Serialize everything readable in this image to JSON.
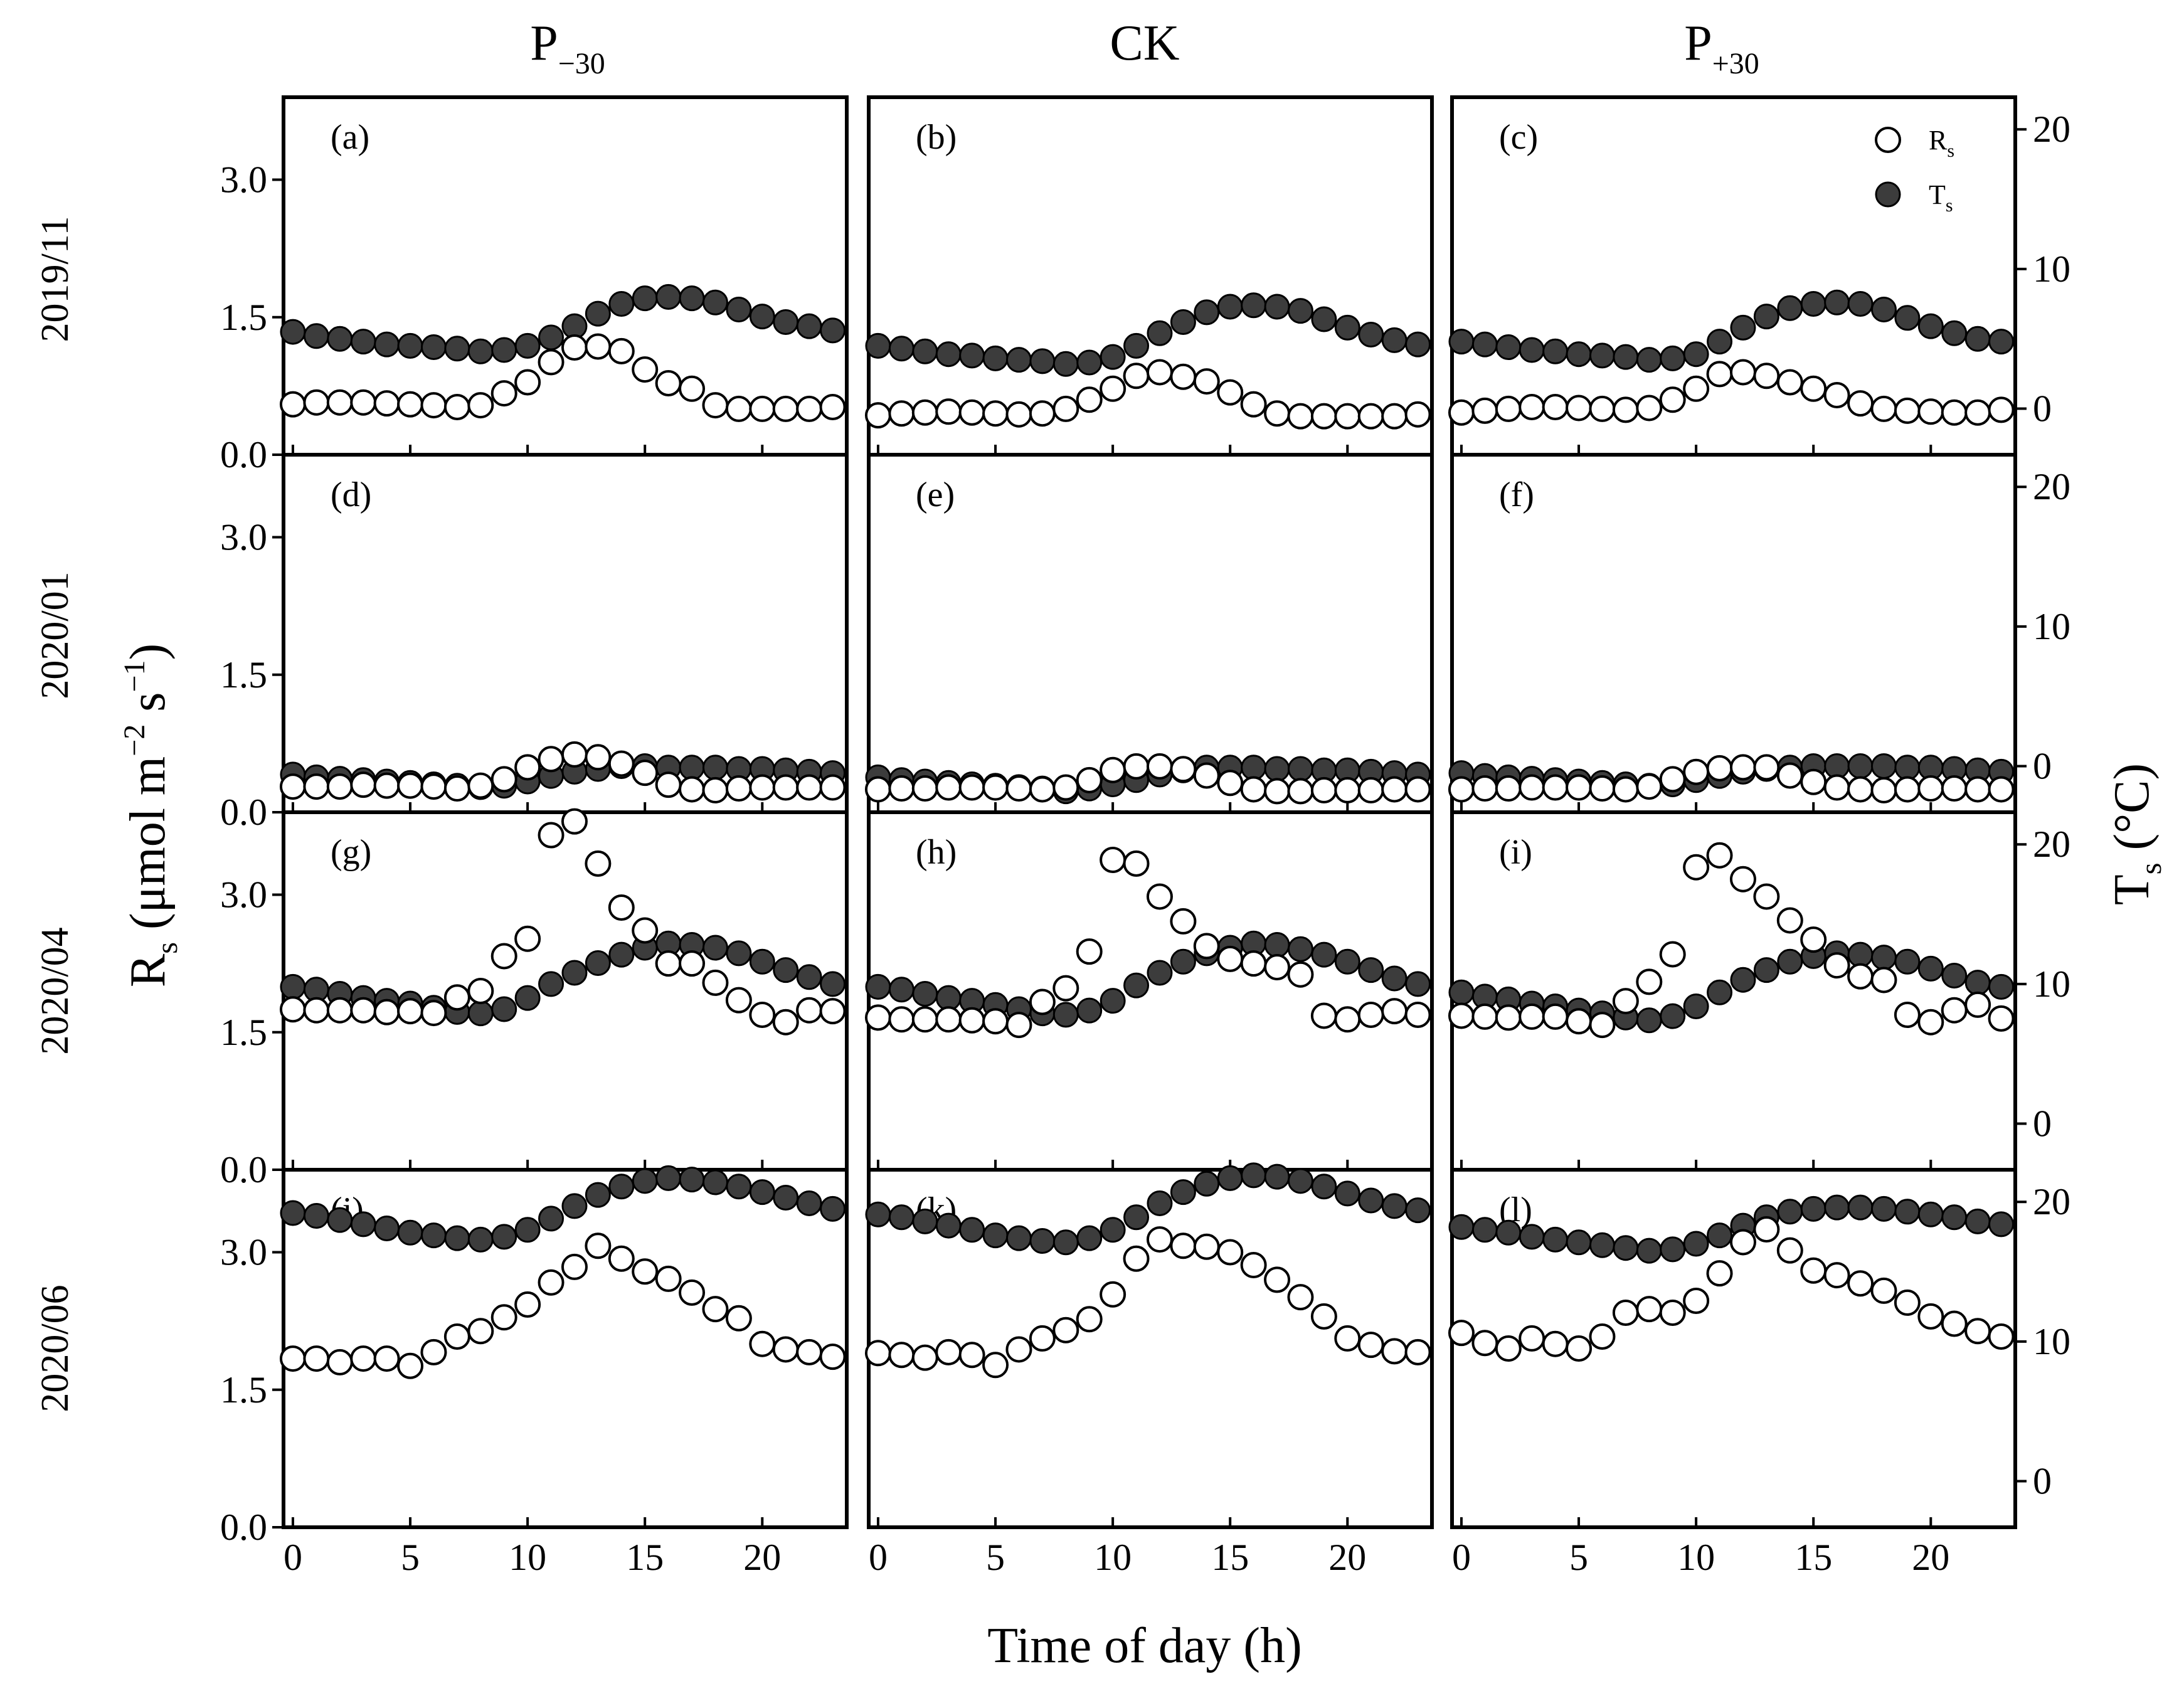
{
  "figure": {
    "columns": [
      {
        "base": "P",
        "sub": "−30"
      },
      {
        "base": "CK",
        "sub": ""
      },
      {
        "base": "P",
        "sub": "+30"
      }
    ],
    "rows": [
      "2019/11",
      "2020/01",
      "2020/04",
      "2020/06"
    ],
    "y_left_title": {
      "base": "R",
      "sub": "s",
      "rest": " (μmol m",
      "sup1": "−2",
      "mid": " s",
      "sup2": "−1",
      "end": ")"
    },
    "y_right_title": {
      "base": "T",
      "sub": "s",
      "rest": " (°C)"
    },
    "x_title": "Time of day (h)",
    "legend": [
      {
        "base": "R",
        "sub": "s",
        "marker": "open-circle"
      },
      {
        "base": "T",
        "sub": "s",
        "marker": "filled-circle"
      }
    ],
    "colors": {
      "rs_fill": "#ffffff",
      "ts_fill": "#3c3c3c",
      "marker_stroke": "#000000"
    }
  },
  "chart_data": {
    "type": "scatter",
    "x_label": "Time of day (h)",
    "x_ticks": [
      "0",
      "5",
      "10",
      "15",
      "20"
    ],
    "xlim": [
      -0.4,
      23.6
    ],
    "y_left": {
      "label": "Rs (μmol m−2 s−1)",
      "lim": [
        0,
        3.9
      ],
      "ticks": [
        "0.0",
        "1.5",
        "3.0"
      ]
    },
    "y_right": {
      "label": "Ts (°C)",
      "lim": [
        -3.3,
        22.3
      ],
      "ticks": [
        "0",
        "10",
        "20"
      ]
    },
    "hours": [
      0,
      1,
      2,
      3,
      4,
      5,
      6,
      7,
      8,
      9,
      10,
      11,
      12,
      13,
      14,
      15,
      16,
      17,
      18,
      19,
      20,
      21,
      22,
      23
    ],
    "panels": [
      {
        "letter": "(a)",
        "row": "2019/11",
        "col": "P−30",
        "rs": [
          0.55,
          0.57,
          0.57,
          0.57,
          0.56,
          0.55,
          0.54,
          0.52,
          0.54,
          0.67,
          0.79,
          1.01,
          1.17,
          1.18,
          1.13,
          0.93,
          0.78,
          0.72,
          0.54,
          0.5,
          0.5,
          0.5,
          0.5,
          0.52
        ],
        "ts": [
          5.5,
          5.2,
          5.0,
          4.8,
          4.6,
          4.5,
          4.4,
          4.3,
          4.1,
          4.2,
          4.5,
          5.1,
          5.9,
          6.8,
          7.5,
          7.9,
          8.0,
          7.9,
          7.6,
          7.1,
          6.6,
          6.2,
          5.9,
          5.6
        ]
      },
      {
        "letter": "(b)",
        "row": "2019/11",
        "col": "CK",
        "rs": [
          0.43,
          0.45,
          0.46,
          0.47,
          0.46,
          0.45,
          0.44,
          0.45,
          0.5,
          0.6,
          0.72,
          0.86,
          0.9,
          0.85,
          0.8,
          0.68,
          0.55,
          0.45,
          0.42,
          0.42,
          0.42,
          0.42,
          0.42,
          0.44
        ],
        "ts": [
          4.5,
          4.3,
          4.1,
          3.9,
          3.8,
          3.6,
          3.5,
          3.4,
          3.2,
          3.3,
          3.7,
          4.5,
          5.4,
          6.2,
          6.9,
          7.3,
          7.4,
          7.3,
          7.0,
          6.4,
          5.8,
          5.3,
          4.9,
          4.6
        ]
      },
      {
        "letter": "(c)",
        "row": "2019/11",
        "col": "P+30",
        "rs": [
          0.46,
          0.48,
          0.5,
          0.52,
          0.52,
          0.51,
          0.5,
          0.49,
          0.51,
          0.6,
          0.72,
          0.88,
          0.9,
          0.86,
          0.79,
          0.72,
          0.65,
          0.56,
          0.5,
          0.48,
          0.47,
          0.46,
          0.46,
          0.49
        ],
        "ts": [
          4.8,
          4.6,
          4.4,
          4.2,
          4.1,
          3.9,
          3.8,
          3.7,
          3.5,
          3.6,
          3.9,
          4.8,
          5.8,
          6.6,
          7.2,
          7.5,
          7.6,
          7.5,
          7.1,
          6.5,
          5.9,
          5.4,
          5.0,
          4.8
        ]
      },
      {
        "letter": "(d)",
        "row": "2020/01",
        "col": "P−30",
        "rs": [
          0.28,
          0.28,
          0.28,
          0.3,
          0.29,
          0.29,
          0.28,
          0.26,
          0.29,
          0.36,
          0.49,
          0.58,
          0.63,
          0.6,
          0.53,
          0.43,
          0.3,
          0.25,
          0.24,
          0.26,
          0.27,
          0.27,
          0.27,
          0.27
        ],
        "ts": [
          -0.6,
          -0.8,
          -0.9,
          -1.0,
          -1.1,
          -1.2,
          -1.3,
          -1.4,
          -1.5,
          -1.4,
          -1.1,
          -0.7,
          -0.4,
          -0.2,
          0.0,
          0.0,
          -0.1,
          -0.1,
          -0.1,
          -0.2,
          -0.2,
          -0.3,
          -0.4,
          -0.5
        ]
      },
      {
        "letter": "(e)",
        "row": "2020/01",
        "col": "CK",
        "rs": [
          0.25,
          0.26,
          0.26,
          0.27,
          0.27,
          0.27,
          0.26,
          0.25,
          0.27,
          0.35,
          0.46,
          0.5,
          0.5,
          0.47,
          0.4,
          0.32,
          0.25,
          0.23,
          0.23,
          0.24,
          0.24,
          0.24,
          0.25,
          0.25
        ],
        "ts": [
          -0.8,
          -1.0,
          -1.1,
          -1.2,
          -1.3,
          -1.4,
          -1.5,
          -1.6,
          -1.8,
          -1.6,
          -1.3,
          -1.0,
          -0.6,
          -0.3,
          -0.1,
          -0.1,
          -0.1,
          -0.2,
          -0.2,
          -0.3,
          -0.3,
          -0.4,
          -0.5,
          -0.6
        ]
      },
      {
        "letter": "(f)",
        "row": "2020/01",
        "col": "P+30",
        "rs": [
          0.25,
          0.26,
          0.26,
          0.27,
          0.27,
          0.27,
          0.26,
          0.25,
          0.28,
          0.36,
          0.44,
          0.48,
          0.49,
          0.49,
          0.4,
          0.33,
          0.27,
          0.25,
          0.24,
          0.25,
          0.26,
          0.26,
          0.25,
          0.25
        ],
        "ts": [
          -0.5,
          -0.7,
          -0.8,
          -0.9,
          -1.0,
          -1.1,
          -1.2,
          -1.3,
          -1.4,
          -1.3,
          -1.0,
          -0.7,
          -0.4,
          -0.2,
          -0.1,
          0.0,
          0.0,
          0.0,
          0.0,
          -0.1,
          -0.1,
          -0.2,
          -0.3,
          -0.4
        ]
      },
      {
        "letter": "(g)",
        "row": "2020/04",
        "col": "P−30",
        "rs": [
          1.75,
          1.74,
          1.74,
          1.74,
          1.72,
          1.73,
          1.71,
          1.88,
          1.95,
          2.33,
          2.52,
          3.65,
          3.8,
          3.34,
          2.86,
          2.61,
          2.25,
          2.25,
          2.04,
          1.85,
          1.69,
          1.61,
          1.74,
          1.73
        ],
        "ts": [
          9.8,
          9.6,
          9.3,
          9.0,
          8.8,
          8.6,
          8.3,
          8.0,
          7.9,
          8.2,
          9.0,
          10.0,
          10.8,
          11.5,
          12.1,
          12.6,
          12.9,
          12.8,
          12.6,
          12.2,
          11.6,
          11.0,
          10.5,
          10.0
        ]
      },
      {
        "letter": "(h)",
        "row": "2020/04",
        "col": "CK",
        "rs": [
          1.66,
          1.64,
          1.64,
          1.64,
          1.63,
          1.62,
          1.58,
          1.83,
          1.98,
          2.38,
          3.38,
          3.34,
          2.98,
          2.71,
          2.44,
          2.3,
          2.25,
          2.21,
          2.13,
          1.68,
          1.64,
          1.69,
          1.73,
          1.69
        ],
        "ts": [
          9.8,
          9.6,
          9.3,
          9.0,
          8.8,
          8.5,
          8.2,
          7.9,
          7.8,
          8.1,
          8.8,
          9.9,
          10.8,
          11.6,
          12.2,
          12.6,
          12.9,
          12.8,
          12.5,
          12.1,
          11.6,
          11.0,
          10.4,
          10.0
        ]
      },
      {
        "letter": "(i)",
        "row": "2020/04",
        "col": "P+30",
        "rs": [
          1.68,
          1.67,
          1.66,
          1.67,
          1.67,
          1.62,
          1.58,
          1.84,
          2.05,
          2.35,
          3.3,
          3.43,
          3.17,
          2.98,
          2.72,
          2.51,
          2.23,
          2.11,
          2.07,
          1.69,
          1.61,
          1.74,
          1.8,
          1.65
        ],
        "ts": [
          9.4,
          9.1,
          8.9,
          8.6,
          8.4,
          8.1,
          7.9,
          7.6,
          7.4,
          7.7,
          8.4,
          9.4,
          10.3,
          11.0,
          11.6,
          12.0,
          12.2,
          12.1,
          11.9,
          11.6,
          11.1,
          10.6,
          10.1,
          9.8
        ]
      },
      {
        "letter": "(j)",
        "row": "2020/06",
        "col": "P−30",
        "rs": [
          1.84,
          1.84,
          1.8,
          1.84,
          1.84,
          1.76,
          1.91,
          2.08,
          2.14,
          2.29,
          2.43,
          2.67,
          2.84,
          3.07,
          2.93,
          2.79,
          2.71,
          2.56,
          2.38,
          2.28,
          2.0,
          1.94,
          1.91,
          1.86
        ],
        "ts": [
          19.2,
          19.0,
          18.7,
          18.4,
          18.1,
          17.8,
          17.6,
          17.4,
          17.3,
          17.5,
          18.0,
          18.8,
          19.7,
          20.5,
          21.1,
          21.5,
          21.7,
          21.6,
          21.4,
          21.1,
          20.7,
          20.3,
          19.9,
          19.5
        ]
      },
      {
        "letter": "(k)",
        "row": "2020/06",
        "col": "CK",
        "rs": [
          1.9,
          1.88,
          1.85,
          1.91,
          1.88,
          1.77,
          1.94,
          2.06,
          2.15,
          2.27,
          2.54,
          2.93,
          3.14,
          3.07,
          3.06,
          3.0,
          2.86,
          2.7,
          2.51,
          2.3,
          2.06,
          1.99,
          1.92,
          1.91
        ],
        "ts": [
          19.1,
          18.9,
          18.6,
          18.3,
          18.0,
          17.6,
          17.4,
          17.2,
          17.1,
          17.4,
          18.0,
          18.9,
          19.9,
          20.7,
          21.3,
          21.7,
          21.9,
          21.8,
          21.5,
          21.1,
          20.6,
          20.1,
          19.7,
          19.4
        ]
      },
      {
        "letter": "(l)",
        "row": "2020/06",
        "col": "P+30",
        "rs": [
          2.12,
          2.01,
          1.95,
          2.06,
          2.0,
          1.95,
          2.08,
          2.34,
          2.38,
          2.34,
          2.47,
          2.77,
          3.11,
          3.25,
          3.02,
          2.8,
          2.75,
          2.66,
          2.58,
          2.45,
          2.3,
          2.22,
          2.14,
          2.08
        ],
        "ts": [
          18.2,
          18.0,
          17.8,
          17.5,
          17.3,
          17.1,
          16.9,
          16.7,
          16.5,
          16.6,
          17.0,
          17.6,
          18.3,
          18.9,
          19.3,
          19.5,
          19.6,
          19.6,
          19.5,
          19.3,
          19.1,
          18.9,
          18.6,
          18.4
        ]
      }
    ]
  }
}
